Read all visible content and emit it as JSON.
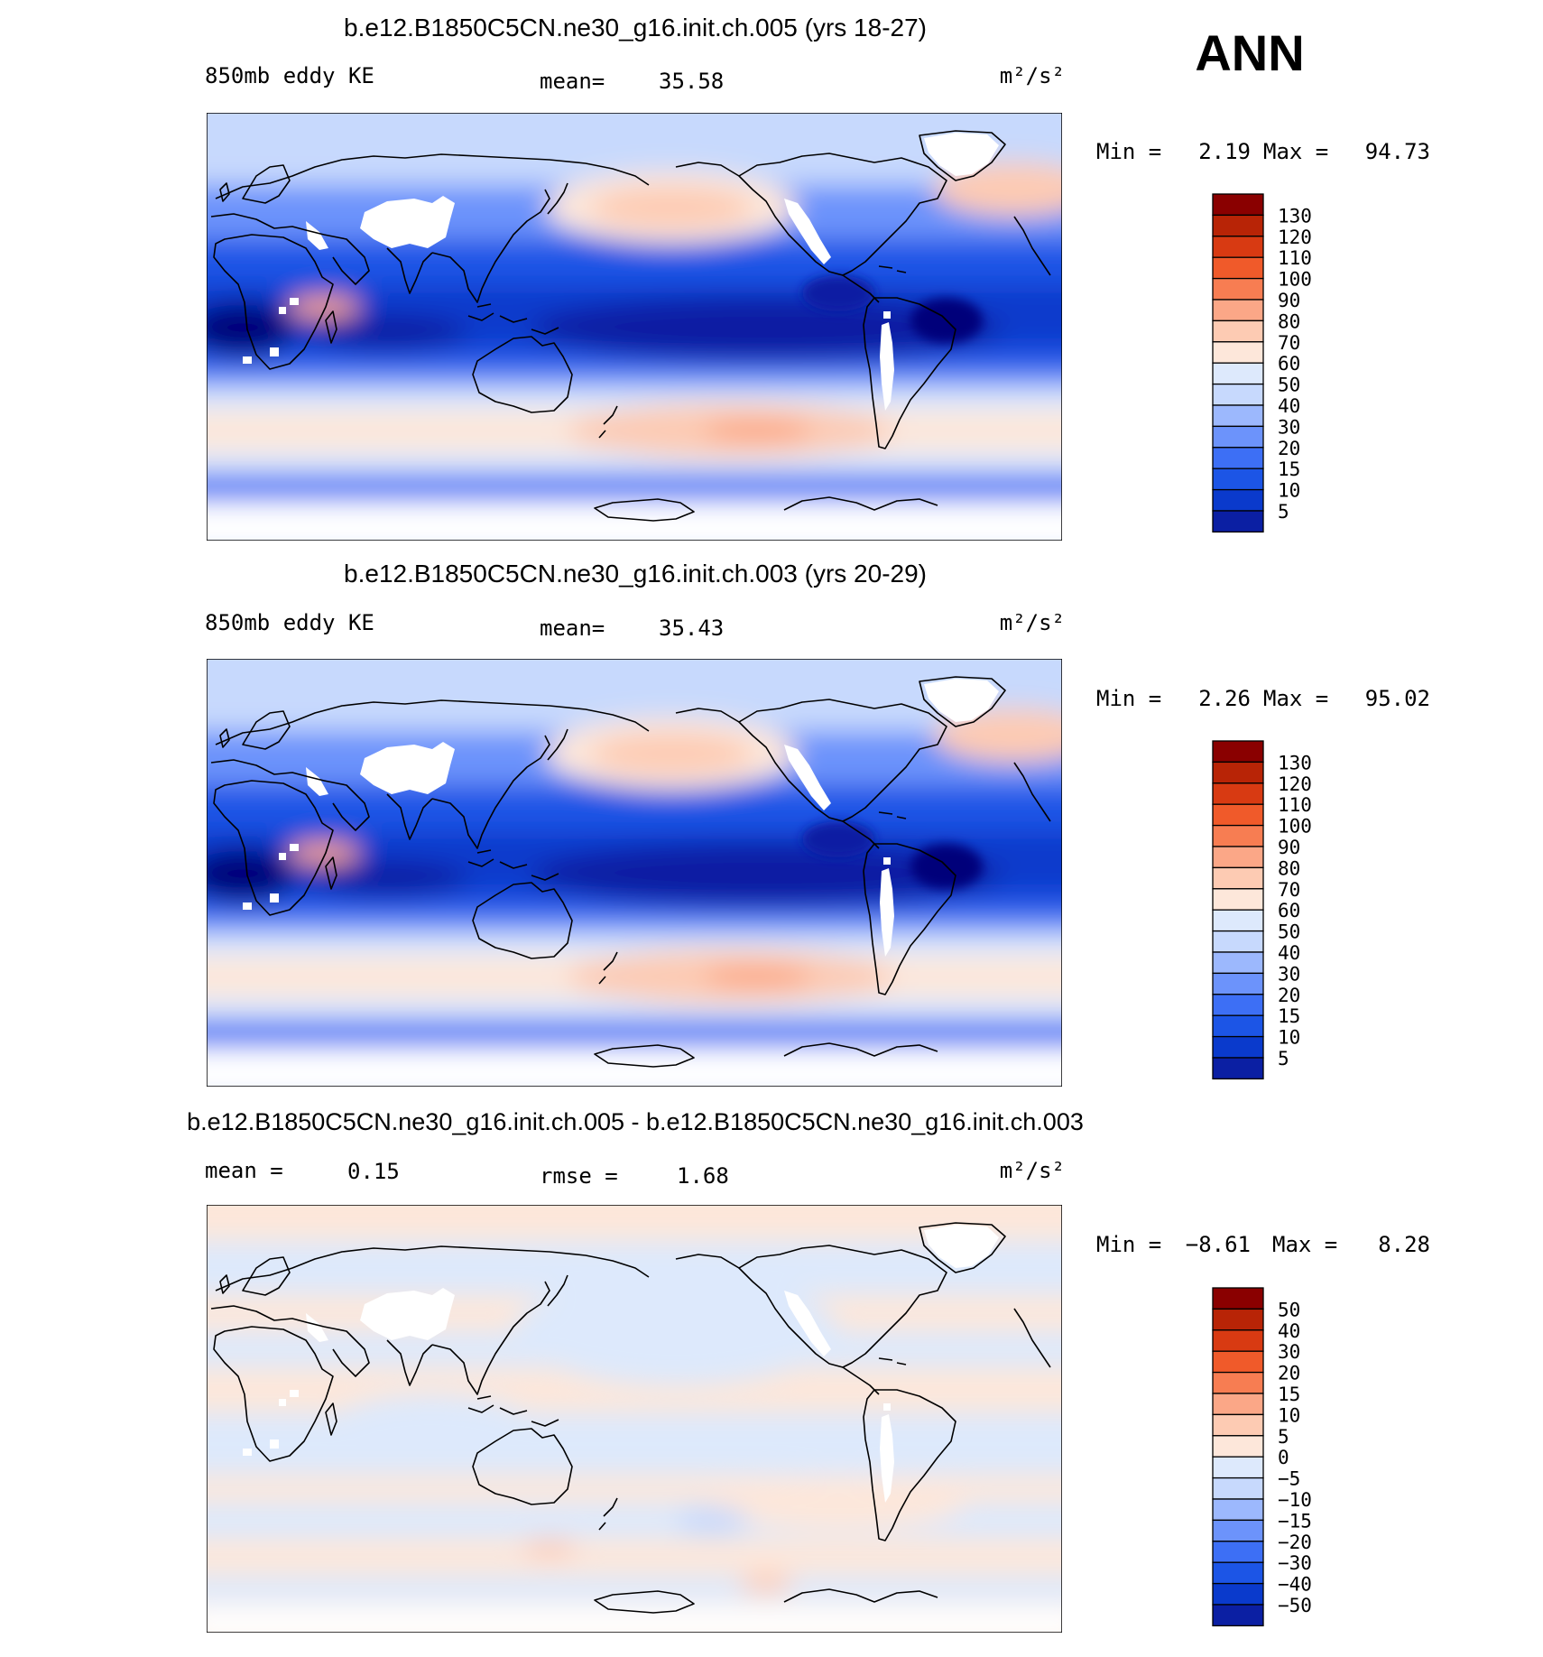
{
  "season": "ANN",
  "panels": [
    {
      "title": "b.e12.B1850C5CN.ne30_g16.init.ch.005 (yrs 18-27)",
      "left_label": "850mb eddy KE",
      "center_label_name": "mean=",
      "center_label_value": "35.58",
      "units": "m²/s²",
      "min_label": "Min =",
      "min_value": "2.19",
      "max_label": "Max =",
      "max_value": "94.73",
      "colorbar_ticks": [
        "130",
        "120",
        "110",
        "100",
        "90",
        "80",
        "70",
        "60",
        "50",
        "40",
        "30",
        "20",
        "15",
        "10",
        "5"
      ]
    },
    {
      "title": "b.e12.B1850C5CN.ne30_g16.init.ch.003 (yrs 20-29)",
      "left_label": "850mb eddy KE",
      "center_label_name": "mean=",
      "center_label_value": "35.43",
      "units": "m²/s²",
      "min_label": "Min =",
      "min_value": "2.26",
      "max_label": "Max =",
      "max_value": "95.02",
      "colorbar_ticks": [
        "130",
        "120",
        "110",
        "100",
        "90",
        "80",
        "70",
        "60",
        "50",
        "40",
        "30",
        "20",
        "15",
        "10",
        "5"
      ]
    },
    {
      "title": "b.e12.B1850C5CN.ne30_g16.init.ch.005 - b.e12.B1850C5CN.ne30_g16.init.ch.003",
      "left_label": "mean =",
      "left_value": "0.15",
      "center_label_name": "rmse =",
      "center_label_value": "1.68",
      "units": "m²/s²",
      "min_label": "Min =",
      "min_value": "−8.61",
      "max_label": "Max =",
      "max_value": "8.28",
      "colorbar_ticks": [
        "50",
        "40",
        "30",
        "20",
        "15",
        "10",
        "5",
        "0",
        "−5",
        "−10",
        "−15",
        "−20",
        "−30",
        "−40",
        "−50"
      ]
    }
  ],
  "colors": {
    "scale": [
      "#00007a",
      "#0b1fa3",
      "#0a3acc",
      "#1c55e6",
      "#3d6ff5",
      "#6c93fb",
      "#9cb8fd",
      "#c7d9fd",
      "#dde9fc",
      "#fde7da",
      "#fdcbb3",
      "#fba787",
      "#f77d52",
      "#f05a2a",
      "#d83a12",
      "#b82406",
      "#8a0000"
    ],
    "scale_order_note": ""
  }
}
